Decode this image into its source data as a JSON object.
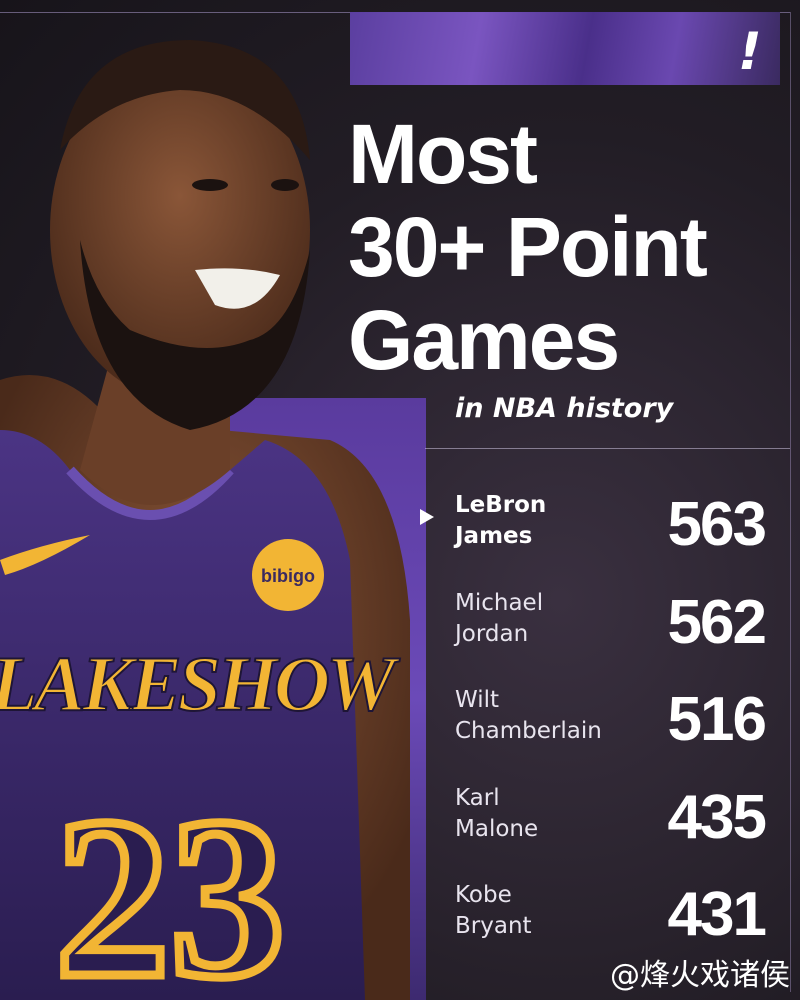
{
  "header": {
    "brand_mark": "!",
    "title_lines": [
      "Most",
      "30+ Point",
      "Games"
    ],
    "subtitle": "in NBA history"
  },
  "ranking": [
    {
      "name_first": "LeBron",
      "name_last": "James",
      "value": "563",
      "highlighted": true
    },
    {
      "name_first": "Michael",
      "name_last": "Jordan",
      "value": "562",
      "highlighted": false
    },
    {
      "name_first": "Wilt",
      "name_last": "Chamberlain",
      "value": "516",
      "highlighted": false
    },
    {
      "name_first": "Karl",
      "name_last": "Malone",
      "value": "435",
      "highlighted": false
    },
    {
      "name_first": "Kobe",
      "name_last": "Bryant",
      "value": "431",
      "highlighted": false
    }
  ],
  "photo": {
    "jersey_text": "LAKESHOW",
    "jersey_number": "23",
    "patch_text": "bibigo"
  },
  "watermark": "@烽火戏诸侯",
  "colors": {
    "background": "#1f1a22",
    "accent_purple": "#5b3fa0",
    "jersey_gold": "#f2b534",
    "text": "#ffffff"
  }
}
